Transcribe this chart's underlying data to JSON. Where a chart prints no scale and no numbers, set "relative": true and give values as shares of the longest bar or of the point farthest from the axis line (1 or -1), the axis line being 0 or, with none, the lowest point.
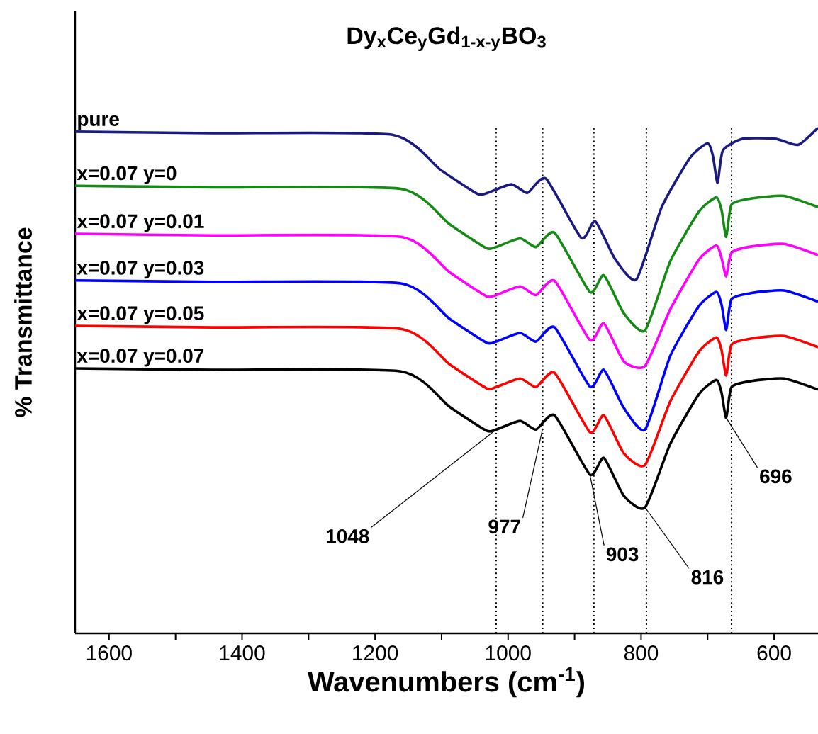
{
  "chart_data": {
    "type": "line",
    "title": "Dy$_{x}$Ce$_{y}$Gd$_{1-x-y}$BO$_{3}$",
    "xlabel": "Wavenumbers (cm$^{-1}$)",
    "ylabel": "% Transmittance",
    "relative": true,
    "xlim": [
      1651,
      534
    ],
    "xticks": [
      1600,
      {
        "value": 1500,
        "label": null
      },
      1400,
      {
        "value": 1300,
        "label": null
      },
      1200,
      {
        "value": 1100,
        "label": null
      },
      1000,
      {
        "value": 900,
        "label": null
      },
      800,
      {
        "value": 700,
        "label": null
      },
      600
    ],
    "x": [
      1651,
      1444,
      1161,
      1088,
      1033,
      1018,
      982,
      958,
      930,
      877,
      856,
      826,
      794,
      756,
      713,
      687,
      679,
      672,
      664,
      634,
      585,
      534
    ],
    "series": [
      {
        "name": "pure",
        "color": "#1a1a80",
        "x": [
          1651,
          1444,
          1174,
          1101,
          1046,
          1031,
          995,
          971,
          943,
          890,
          869,
          839,
          807,
          769,
          726,
          700,
          692,
          685,
          677,
          647,
          598,
          564,
          534
        ],
        "values": [
          0.992,
          0.989,
          0.986,
          0.916,
          0.869,
          0.871,
          0.888,
          0.871,
          0.899,
          0.782,
          0.815,
          0.74,
          0.7,
          0.843,
          0.941,
          0.969,
          0.944,
          0.891,
          0.955,
          0.978,
          0.978,
          0.966,
          1.0
        ]
      },
      {
        "name": "x=0.07  y=0",
        "color": "#158a15",
        "values": [
          0.885,
          0.882,
          0.879,
          0.809,
          0.762,
          0.764,
          0.781,
          0.764,
          0.792,
          0.675,
          0.708,
          0.633,
          0.599,
          0.736,
          0.834,
          0.862,
          0.837,
          0.784,
          0.848,
          0.86,
          0.865,
          0.843
        ]
      },
      {
        "name": "x=0.07  y=0.01",
        "color": "#ff00ff",
        "values": [
          0.79,
          0.787,
          0.784,
          0.714,
          0.667,
          0.669,
          0.686,
          0.669,
          0.697,
          0.58,
          0.613,
          0.538,
          0.529,
          0.641,
          0.739,
          0.767,
          0.742,
          0.706,
          0.753,
          0.765,
          0.77,
          0.748
        ]
      },
      {
        "name": "x=0.07  y=0.03",
        "color": "#0000ff",
        "values": [
          0.698,
          0.695,
          0.692,
          0.622,
          0.575,
          0.577,
          0.594,
          0.577,
          0.605,
          0.488,
          0.521,
          0.446,
          0.403,
          0.549,
          0.647,
          0.675,
          0.65,
          0.6,
          0.661,
          0.673,
          0.678,
          0.656
        ]
      },
      {
        "name": "x=0.07  y=0.05",
        "color": "#ff0000",
        "values": [
          0.608,
          0.605,
          0.602,
          0.532,
          0.485,
          0.487,
          0.504,
          0.487,
          0.515,
          0.398,
          0.431,
          0.356,
          0.333,
          0.459,
          0.557,
          0.585,
          0.56,
          0.51,
          0.571,
          0.583,
          0.588,
          0.566
        ]
      },
      {
        "name": "x=0.07  y=0.07",
        "color": "#000000",
        "values": [
          0.524,
          0.521,
          0.518,
          0.448,
          0.401,
          0.403,
          0.42,
          0.403,
          0.431,
          0.314,
          0.347,
          0.272,
          0.249,
          0.375,
          0.473,
          0.501,
          0.476,
          0.426,
          0.487,
          0.499,
          0.504,
          0.482
        ]
      }
    ],
    "ref_lines": [
      {
        "axis": "x",
        "value": 1018,
        "line_style": "dotted",
        "color": "#000000"
      },
      {
        "axis": "x",
        "value": 948,
        "line_style": "dotted",
        "color": "#000000"
      },
      {
        "axis": "x",
        "value": 871,
        "line_style": "dotted",
        "color": "#000000"
      },
      {
        "axis": "x",
        "value": 792,
        "line_style": "dotted",
        "color": "#000000"
      },
      {
        "axis": "x",
        "value": 664,
        "line_style": "dotted",
        "color": "#000000"
      }
    ],
    "annotations": [
      {
        "text": "1048",
        "x": 1018,
        "y": 0.403
      },
      {
        "text": "977",
        "x": 948,
        "y": 0.405
      },
      {
        "text": "903",
        "x": 877,
        "y": 0.314
      },
      {
        "text": "816",
        "x": 794,
        "y": 0.249
      },
      {
        "text": "696",
        "x": 672,
        "y": 0.426
      }
    ]
  }
}
